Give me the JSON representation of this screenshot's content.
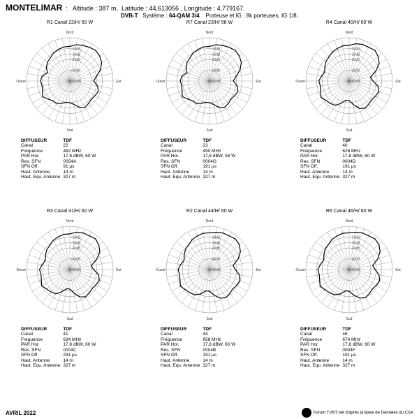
{
  "site": {
    "name": "MONTELIMAR",
    "alt_label": "Altitude :",
    "alt_value": "387 m",
    "lat_label": "Latitude :",
    "lat_value": "44,613056",
    "lon_label": "Longitude :",
    "lon_value": "4,779167."
  },
  "system": {
    "std": "DVB-T",
    "sys_label": "Système :",
    "sys_value": "64-QAM 3/4",
    "carrier_label": "Porteuse et IG :",
    "carrier_value": "8k porteuses, IG 1/8."
  },
  "polar": {
    "rings": [
      0,
      -10,
      -15,
      -20,
      -30,
      -40
    ],
    "ring_color": "#666666",
    "spoke_color": "#666666",
    "line_color": "#000000",
    "background": "#ffffff",
    "compass": {
      "N": "Nord",
      "S": "Sud",
      "E": "Est",
      "W": "Ouest"
    },
    "label_font": 5
  },
  "info_labels": {
    "h1": "DIFFUSEUR",
    "h2": "TDF",
    "r1": "Canal",
    "r2": "Fréquence",
    "r3": "PAR Hor.",
    "r4": "Res. SFN",
    "r5": "SFN Off.",
    "r6": "Haut. Antenne",
    "r7": "Haut. Equ. Antenne"
  },
  "panels": [
    {
      "title": "R1  Canal 22/H/  60 W",
      "canal": "22",
      "freq": "482 MHz",
      "par": "17,8 dBW, 60 W",
      "res_sfn": "0054A",
      "sfn_off": "91 µs",
      "haut_ant": "14 m",
      "haut_equ": "327 m",
      "pattern": [
        -8,
        -6,
        -5,
        -4,
        -3,
        -4,
        -6,
        -10,
        -15,
        -18,
        -14,
        -12,
        -13,
        -14,
        -13,
        -12,
        -14,
        -18,
        -20,
        -20,
        -18,
        -16,
        -16,
        -14,
        -11,
        -13,
        -14,
        -13,
        -14,
        -18,
        -15,
        -13,
        -12,
        -10,
        -9,
        -8
      ]
    },
    {
      "title": "R7  Canal 23/H/  58 W",
      "canal": "23",
      "freq": "490 MHz",
      "par": "17,6 dBW, 58 W",
      "res_sfn": "0004G",
      "sfn_off": "191 µs",
      "haut_ant": "14 m",
      "haut_equ": "327 m",
      "pattern": [
        -8,
        -6,
        -5,
        -4,
        -3,
        -4,
        -6,
        -10,
        -15,
        -18,
        -14,
        -12,
        -13,
        -14,
        -13,
        -12,
        -14,
        -18,
        -20,
        -20,
        -18,
        -16,
        -16,
        -14,
        -11,
        -13,
        -14,
        -13,
        -14,
        -18,
        -15,
        -13,
        -12,
        -10,
        -9,
        -8
      ]
    },
    {
      "title": "R4  Canal 40/H/  60 W",
      "canal": "40",
      "freq": "626 MHz",
      "par": "17,8 dBW, 60 W",
      "res_sfn": "0004D",
      "sfn_off": "191 µs",
      "haut_ant": "14 m",
      "haut_equ": "327 m",
      "pattern": [
        -7,
        -5,
        -4,
        -4,
        -3,
        -5,
        -8,
        -14,
        -20,
        -18,
        -13,
        -11,
        -12,
        -13,
        -12,
        -11,
        -13,
        -18,
        -22,
        -22,
        -18,
        -14,
        -13,
        -12,
        -10,
        -12,
        -13,
        -12,
        -14,
        -16,
        -14,
        -12,
        -11,
        -9,
        -8,
        -7
      ]
    },
    {
      "title": "R3  Canal 41/H/  60 W",
      "canal": "41",
      "freq": "634 MHz",
      "par": "17,8 dBW, 60 W",
      "res_sfn": "0004C",
      "sfn_off": "291 µs",
      "haut_ant": "14 m",
      "haut_equ": "327 m",
      "pattern": [
        -7,
        -5,
        -4,
        -4,
        -3,
        -5,
        -8,
        -14,
        -20,
        -18,
        -13,
        -11,
        -12,
        -13,
        -12,
        -11,
        -13,
        -18,
        -22,
        -22,
        -18,
        -14,
        -13,
        -12,
        -10,
        -12,
        -13,
        -12,
        -14,
        -16,
        -14,
        -12,
        -11,
        -9,
        -8,
        -7
      ]
    },
    {
      "title": "R2  Canal 44/H/  60 W",
      "canal": "44",
      "freq": "658 MHz",
      "par": "17,8 dBW, 60 W",
      "res_sfn": "0004B",
      "sfn_off": "191 µs",
      "haut_ant": "14 m",
      "haut_equ": "327 m",
      "pattern": [
        -6,
        -5,
        -4,
        -4,
        -3,
        -4,
        -7,
        -12,
        -18,
        -16,
        -12,
        -10,
        -11,
        -12,
        -11,
        -10,
        -12,
        -16,
        -20,
        -20,
        -16,
        -13,
        -12,
        -11,
        -9,
        -11,
        -12,
        -11,
        -13,
        -15,
        -13,
        -11,
        -10,
        -8,
        -7,
        -6
      ]
    },
    {
      "title": "R6  Canal 46/H/  60 W",
      "canal": "46",
      "freq": "674 MHz",
      "par": "17,8 dBW, 60 W",
      "res_sfn": "0004F",
      "sfn_off": "191 µs",
      "haut_ant": "14 m",
      "haut_equ": "327 m",
      "pattern": [
        -6,
        -5,
        -4,
        -4,
        -3,
        -4,
        -7,
        -12,
        -18,
        -16,
        -12,
        -10,
        -11,
        -12,
        -11,
        -10,
        -12,
        -16,
        -20,
        -20,
        -16,
        -13,
        -12,
        -11,
        -9,
        -11,
        -12,
        -11,
        -13,
        -15,
        -13,
        -11,
        -10,
        -8,
        -7,
        -6
      ]
    }
  ],
  "footer": {
    "date": "AVRIL 2022",
    "source": "Forum TVNT.net d'après la Base de Données du CSA"
  }
}
